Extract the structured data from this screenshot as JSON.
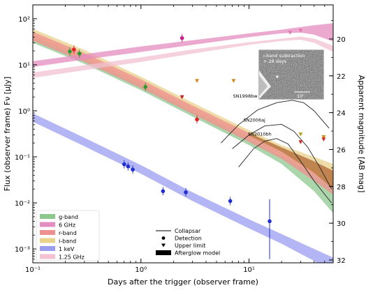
{
  "chart_data": {
    "type": "line",
    "xlabel": "Days after the trigger (observer frame)",
    "ylabel": "Flux (observer frame) Fν [μJy]",
    "y2label": "Apparent magnitude [AB mag]",
    "xscale": "log",
    "yscale": "log",
    "xlim": [
      0.1,
      60
    ],
    "ylim": [
      0.0005,
      200
    ],
    "xticks": [
      {
        "value": 0.1,
        "label": "10⁻¹"
      },
      {
        "value": 1,
        "label": "10⁰"
      },
      {
        "value": 10,
        "label": "10¹"
      }
    ],
    "yticks": [
      {
        "value": 0.001,
        "label": "10⁻³"
      },
      {
        "value": 0.01,
        "label": "10⁻²"
      },
      {
        "value": 0.1,
        "label": "10⁻¹"
      },
      {
        "value": 1,
        "label": "10⁰"
      },
      {
        "value": 10,
        "label": "10¹"
      },
      {
        "value": 100,
        "label": "10²"
      }
    ],
    "y2ticks": [
      {
        "mag": 20,
        "label": "20"
      },
      {
        "mag": 22,
        "label": "22"
      },
      {
        "mag": 24,
        "label": "24"
      },
      {
        "mag": 26,
        "label": "26"
      },
      {
        "mag": 28,
        "label": "28"
      },
      {
        "mag": 30,
        "label": "30"
      },
      {
        "mag": 32,
        "label": "32"
      }
    ],
    "grid": false,
    "bands": [
      {
        "name": "g-band",
        "color": "#8fc88f",
        "x": [
          0.1,
          0.3,
          1,
          3,
          10,
          20,
          40,
          60
        ],
        "lower": [
          30,
          10.5,
          2.8,
          0.75,
          0.18,
          0.07,
          0.018,
          0.006
        ],
        "upper": [
          45,
          15.5,
          4.2,
          1.15,
          0.29,
          0.13,
          0.045,
          0.02
        ]
      },
      {
        "name": "i-band",
        "color": "#e8d28c",
        "x": [
          0.1,
          0.3,
          1,
          3,
          10,
          20,
          40,
          60
        ],
        "lower": [
          38,
          13,
          3.5,
          0.95,
          0.24,
          0.1,
          0.04,
          0.02
        ],
        "upper": [
          60,
          21,
          5.5,
          1.5,
          0.38,
          0.18,
          0.1,
          0.07
        ]
      },
      {
        "name": "r-band",
        "color": "#f08f8f",
        "x": [
          0.1,
          0.3,
          1,
          3,
          10,
          20,
          40,
          60
        ],
        "lower": [
          33,
          11.5,
          3.1,
          0.85,
          0.21,
          0.09,
          0.03,
          0.015
        ],
        "upper": [
          52,
          18,
          4.8,
          1.3,
          0.33,
          0.16,
          0.08,
          0.05
        ]
      },
      {
        "name": "6 GHz",
        "color": "#e58cc0",
        "x": [
          0.1,
          0.3,
          1,
          3,
          10,
          20,
          30,
          40,
          60
        ],
        "lower": [
          9,
          13,
          19,
          27,
          40,
          48,
          50,
          45,
          32
        ],
        "upper": [
          12,
          17,
          25,
          34,
          48,
          58,
          66,
          72,
          80
        ]
      },
      {
        "name": "1.25 GHz",
        "color": "#f2c2d2",
        "x": [
          0.1,
          0.3,
          1,
          3,
          10,
          20,
          30,
          40,
          60
        ],
        "lower": [
          5.2,
          7.6,
          11.5,
          17.5,
          27,
          33,
          35,
          30,
          19
        ],
        "upper": [
          6.8,
          9.8,
          14.5,
          21.5,
          31,
          37,
          41,
          37,
          26
        ]
      },
      {
        "name": "1 keV",
        "color": "#9a9cf0",
        "x": [
          0.1,
          0.3,
          1,
          3,
          10,
          20,
          40,
          60
        ],
        "lower": [
          0.58,
          0.17,
          0.043,
          0.011,
          0.0028,
          0.0013,
          0.00055,
          0.0003
        ],
        "upper": [
          0.88,
          0.26,
          0.066,
          0.017,
          0.0044,
          0.0021,
          0.001,
          0.00065
        ]
      }
    ],
    "collapsar_curves": [
      {
        "name": "SN1998bw",
        "x": [
          5.5,
          8,
          12,
          18,
          25,
          32,
          40,
          55
        ],
        "y": [
          0.2,
          0.5,
          1.05,
          1.5,
          1.7,
          1.5,
          1.0,
          0.42
        ]
      },
      {
        "name": "SN2006aj",
        "x": [
          7,
          10,
          14,
          20,
          26,
          35,
          45,
          58
        ],
        "y": [
          0.15,
          0.3,
          0.47,
          0.51,
          0.36,
          0.16,
          0.06,
          0.02
        ]
      },
      {
        "name": "SN2010bh",
        "x": [
          8,
          11,
          14,
          18,
          23,
          30,
          40,
          58
        ],
        "y": [
          0.06,
          0.15,
          0.22,
          0.25,
          0.19,
          0.08,
          0.03,
          0.01
        ]
      }
    ],
    "detections": [
      {
        "band": "g-band",
        "x": 0.22,
        "y": 19.5,
        "color": "#2e9a2e"
      },
      {
        "band": "g-band",
        "x": 0.27,
        "y": 17.5,
        "color": "#2e9a2e"
      },
      {
        "band": "g-band",
        "x": 1.1,
        "y": 3.3,
        "color": "#2e9a2e"
      },
      {
        "band": "r-band",
        "x": 0.24,
        "y": 21.5,
        "color": "#e02424"
      },
      {
        "band": "r-band",
        "x": 3.3,
        "y": 0.65,
        "color": "#e02424"
      },
      {
        "band": "6 GHz",
        "x": 2.4,
        "y": 38,
        "color": "#cc1f8a"
      },
      {
        "band": "1 keV",
        "x": 0.7,
        "y": 0.069,
        "color": "#1f2fd0"
      },
      {
        "band": "1 keV",
        "x": 0.76,
        "y": 0.062,
        "color": "#1f2fd0"
      },
      {
        "band": "1 keV",
        "x": 0.84,
        "y": 0.053,
        "color": "#1f2fd0"
      },
      {
        "band": "1 keV",
        "x": 1.6,
        "y": 0.018,
        "color": "#1f2fd0"
      },
      {
        "band": "1 keV",
        "x": 2.6,
        "y": 0.017,
        "color": "#1f2fd0"
      },
      {
        "band": "1 keV",
        "x": 6.7,
        "y": 0.011,
        "color": "#1f2fd0"
      },
      {
        "band": "1 keV",
        "x": 15.5,
        "y": 0.004,
        "color": "#1f2fd0",
        "err": [
          0.0006,
          0.012
        ]
      }
    ],
    "upper_limits": [
      {
        "band": "r-band",
        "x": 2.4,
        "y": 2.0,
        "color": "#c02020"
      },
      {
        "band": "i-band",
        "x": 3.3,
        "y": 4.5,
        "color": "#d08a1a"
      },
      {
        "band": "i-band",
        "x": 7.2,
        "y": 4.5,
        "color": "#d08a1a"
      },
      {
        "band": "6 GHz",
        "x": 24,
        "y": 50,
        "color": "#e07ab0"
      },
      {
        "band": "6 GHz",
        "x": 30,
        "y": 55,
        "color": "#e07ab0"
      },
      {
        "band": "i-band",
        "x": 30,
        "y": 0.31,
        "color": "#b8a020"
      },
      {
        "band": "r-band",
        "x": 30,
        "y": 0.21,
        "color": "#d02a2a"
      },
      {
        "band": "i-band",
        "x": 49,
        "y": 0.27,
        "color": "#d08a1a"
      },
      {
        "band": "r-band",
        "x": 49,
        "y": 0.24,
        "color": "#d02a2a"
      }
    ],
    "legend_bands": [
      {
        "label": "g-band",
        "color": "#8fc88f"
      },
      {
        "label": "6 GHz",
        "color": "#e58cc0"
      },
      {
        "label": "r-band",
        "color": "#f08f8f"
      },
      {
        "label": "i-band",
        "color": "#e8d28c"
      },
      {
        "label": "1 keV",
        "color": "#9a9cf0"
      },
      {
        "label": "1.25 GHz",
        "color": "#f2c2d2"
      }
    ],
    "legend_markers": [
      {
        "label": "Collapsar",
        "symbol": "line"
      },
      {
        "label": "Detection",
        "symbol": "dot"
      },
      {
        "label": "Upper limit",
        "symbol": "triangle"
      },
      {
        "label": "Afterglow model",
        "symbol": "box"
      }
    ],
    "inset": {
      "title_line1": "i-band subtraction",
      "title_line2": "+ 28 days",
      "scale_label": "10″"
    }
  }
}
